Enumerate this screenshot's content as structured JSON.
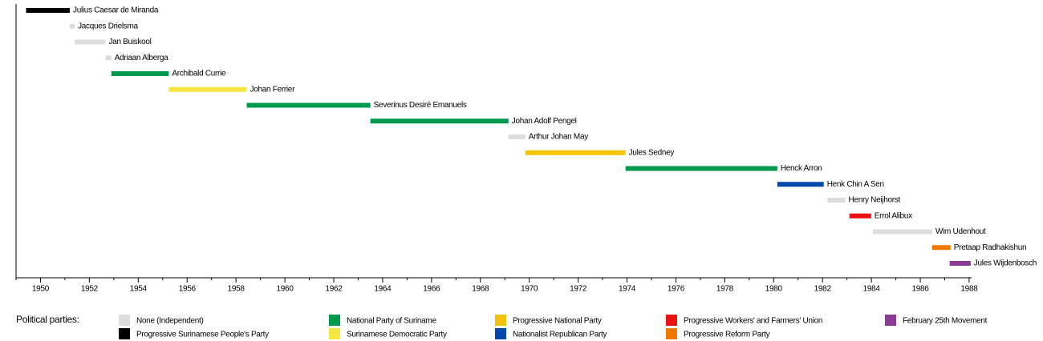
{
  "chart_data": {
    "type": "timeline",
    "legend_title": "Political parties:",
    "xlim": [
      1949,
      1988.1
    ],
    "xticks": [
      1950,
      1952,
      1954,
      1956,
      1958,
      1960,
      1962,
      1964,
      1966,
      1968,
      1970,
      1972,
      1974,
      1976,
      1978,
      1980,
      1982,
      1984,
      1986,
      1988
    ],
    "xminorticks": [
      1949,
      1951,
      1953,
      1955,
      1957,
      1959,
      1961,
      1963,
      1965,
      1967,
      1969,
      1971,
      1973,
      1975,
      1977,
      1979,
      1981,
      1983,
      1985,
      1987
    ],
    "bars": [
      {
        "name": "Julius Caesar de Miranda",
        "start": 1949.41,
        "end": 1951.2,
        "color": "#000000"
      },
      {
        "name": "Jacques Drielsma",
        "start": 1951.2,
        "end": 1951.4,
        "color": "#dddddd"
      },
      {
        "name": "Jan Buiskool",
        "start": 1951.4,
        "end": 1952.66,
        "color": "#dddddd"
      },
      {
        "name": "Adriaan Alberga",
        "start": 1952.66,
        "end": 1952.9,
        "color": "#dddddd"
      },
      {
        "name": "Archibald Currie",
        "start": 1952.9,
        "end": 1955.25,
        "color": "#009a4e"
      },
      {
        "name": "Johan Ferrier",
        "start": 1955.25,
        "end": 1958.44,
        "color": "#f5e642"
      },
      {
        "name": "Severinus Desiré Emanuels",
        "start": 1958.44,
        "end": 1963.5,
        "color": "#009a4e"
      },
      {
        "name": "Johan Adolf Pengel",
        "start": 1963.5,
        "end": 1969.15,
        "color": "#009a4e"
      },
      {
        "name": "Arthur Johan May",
        "start": 1969.15,
        "end": 1969.84,
        "color": "#dddddd"
      },
      {
        "name": "Jules Sedney",
        "start": 1969.84,
        "end": 1973.94,
        "color": "#f5c400"
      },
      {
        "name": "Henck Arron",
        "start": 1973.94,
        "end": 1980.15,
        "color": "#009a4e"
      },
      {
        "name": "Henk Chin A Sen",
        "start": 1980.15,
        "end": 1982.05,
        "color": "#0047ab"
      },
      {
        "name": "Henry Neijhorst",
        "start": 1982.2,
        "end": 1982.93,
        "color": "#dddddd"
      },
      {
        "name": "Errol Alibux",
        "start": 1983.1,
        "end": 1983.99,
        "color": "#ee1111"
      },
      {
        "name": "Wim Udenhout",
        "start": 1984.05,
        "end": 1986.49,
        "color": "#dddddd"
      },
      {
        "name": "Pretaap Radhakishun",
        "start": 1986.49,
        "end": 1987.24,
        "color": "#f07800"
      },
      {
        "name": "Jules Wijdenbosch",
        "start": 1987.2,
        "end": 1988.06,
        "color": "#8b3a96"
      }
    ],
    "parties": [
      {
        "name": "None (Independent)",
        "color": "#dddddd"
      },
      {
        "name": "Progressive Surinamese People's Party",
        "color": "#000000"
      },
      {
        "name": "National Party of Suriname",
        "color": "#009a4e"
      },
      {
        "name": "Surinamese Democratic Party",
        "color": "#f5e642"
      },
      {
        "name": "Progressive National Party",
        "color": "#f5c400"
      },
      {
        "name": "Nationalist Republican Party",
        "color": "#0047ab"
      },
      {
        "name": "Progressive Workers' and Farmers' Union",
        "color": "#ee1111"
      },
      {
        "name": "Progressive Reform Party",
        "color": "#f07800"
      },
      {
        "name": "February 25th Movement",
        "color": "#8b3a96"
      }
    ]
  }
}
